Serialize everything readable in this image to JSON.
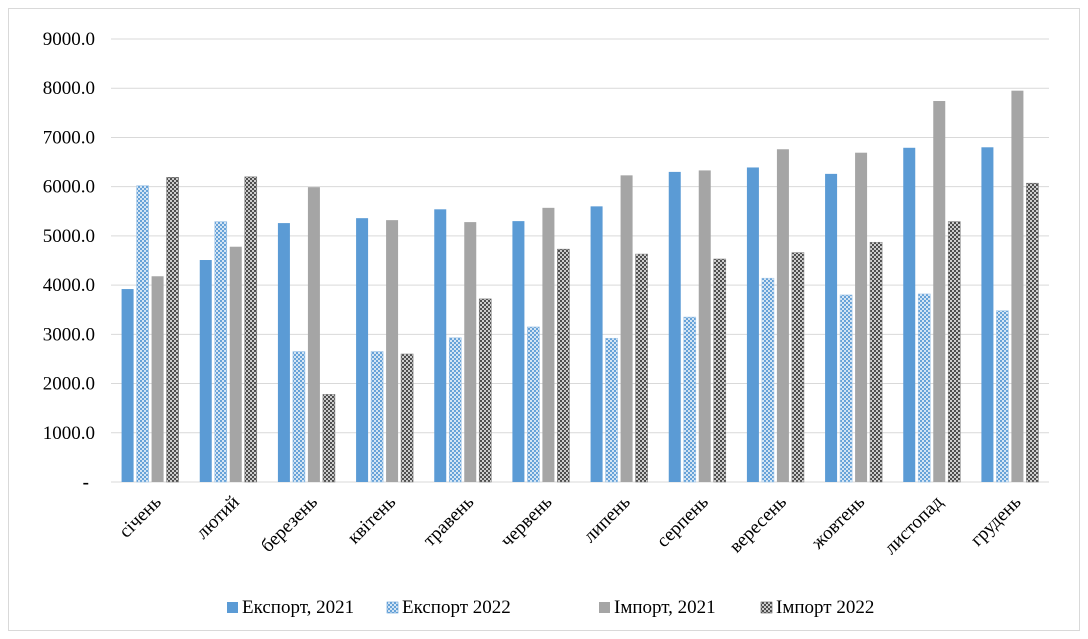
{
  "chart_data": {
    "type": "bar",
    "categories": [
      "січень",
      "лютий",
      "березень",
      "квітень",
      "травень",
      "червень",
      "липень",
      "серпень",
      "вересень",
      "жовтень",
      "листопад",
      "грудень"
    ],
    "series": [
      {
        "name": "Експорт, 2021",
        "pattern": "solid",
        "color": "#5b9bd5",
        "values": [
          3920,
          4510,
          5260,
          5360,
          5540,
          5300,
          5600,
          6300,
          6390,
          6260,
          6790,
          6800
        ]
      },
      {
        "name": "Експорт 2022",
        "pattern": "crosshatch",
        "color": "#5b9bd5",
        "values": [
          6020,
          5290,
          2650,
          2650,
          2930,
          3150,
          2920,
          3350,
          4140,
          3800,
          3820,
          3480
        ]
      },
      {
        "name": "Імпорт, 2021",
        "pattern": "solid",
        "color": "#a5a5a5",
        "values": [
          4180,
          4780,
          5990,
          5320,
          5280,
          5570,
          6230,
          6330,
          6760,
          6690,
          7740,
          7950
        ]
      },
      {
        "name": "Імпорт 2022",
        "pattern": "crosshatch",
        "color": "#595959",
        "values": [
          6190,
          6200,
          1780,
          2600,
          3720,
          4730,
          4630,
          4530,
          4660,
          4870,
          5290,
          6070
        ]
      }
    ],
    "ylim": [
      0,
      9000
    ],
    "yticks": [
      {
        "value": 0,
        "label": "-"
      },
      {
        "value": 1000,
        "label": "1000.0"
      },
      {
        "value": 2000,
        "label": "2000.0"
      },
      {
        "value": 3000,
        "label": "3000.0"
      },
      {
        "value": 4000,
        "label": "4000.0"
      },
      {
        "value": 5000,
        "label": "5000.0"
      },
      {
        "value": 6000,
        "label": "6000.0"
      },
      {
        "value": 7000,
        "label": "7000.0"
      },
      {
        "value": 8000,
        "label": "8000.0"
      },
      {
        "value": 9000,
        "label": "9000.0"
      }
    ],
    "grid": true,
    "legend_position": "bottom"
  }
}
